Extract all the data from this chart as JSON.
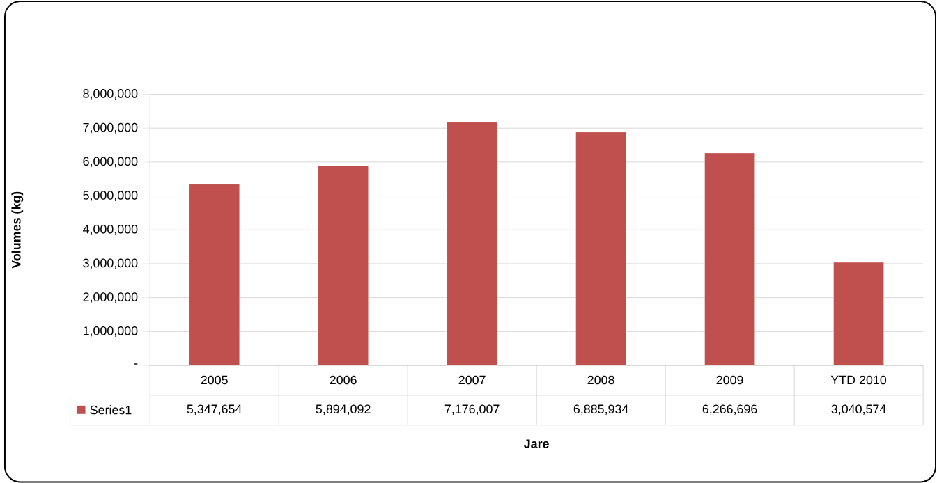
{
  "chart_data": {
    "type": "bar",
    "xlabel": "Jare",
    "ylabel": "Volumes (kg)",
    "categories": [
      "2005",
      "2006",
      "2007",
      "2008",
      "2009",
      "YTD 2010"
    ],
    "series": [
      {
        "name": "Series1",
        "color": "#c0504d",
        "values": [
          5347654,
          5894092,
          7176007,
          6885934,
          6266696,
          3040574
        ],
        "value_labels": [
          "5,347,654",
          "5,894,092",
          "7,176,007",
          "6,885,934",
          "6,266,696",
          "3,040,574"
        ]
      }
    ],
    "ylim": [
      0,
      8000000
    ],
    "yticks": [
      {
        "value": 0,
        "label": "-"
      },
      {
        "value": 1000000,
        "label": "1,000,000"
      },
      {
        "value": 2000000,
        "label": "2,000,000"
      },
      {
        "value": 3000000,
        "label": "3,000,000"
      },
      {
        "value": 4000000,
        "label": "4,000,000"
      },
      {
        "value": 5000000,
        "label": "5,000,000"
      },
      {
        "value": 6000000,
        "label": "6,000,000"
      },
      {
        "value": 7000000,
        "label": "7,000,000"
      },
      {
        "value": 8000000,
        "label": "8,000,000"
      }
    ],
    "grid": "y",
    "legend": "bottom"
  }
}
